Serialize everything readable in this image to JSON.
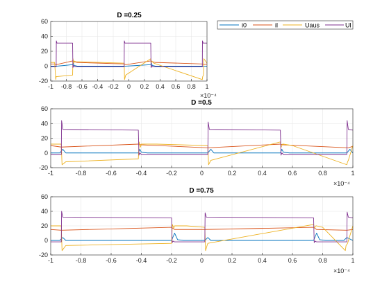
{
  "chart_data": [
    {
      "type": "line",
      "title": "D =0.25",
      "xlim": [
        -1,
        1
      ],
      "ylim": [
        -20,
        60
      ],
      "xticks": [
        "-1",
        "-0.8",
        "-0.6",
        "-0.4",
        "-0.2",
        "0",
        "0.2",
        "0.4",
        "0.6",
        "0.8",
        "1"
      ],
      "yticks": [
        "-20",
        "0",
        "20",
        "40",
        "60"
      ],
      "x_exponent": "×10⁻⁴",
      "grid": true,
      "legend_position": "outside-right",
      "series": [
        {
          "name": "i0",
          "color": "#0072BD",
          "x": [
            -1,
            -0.94,
            -0.932,
            -0.92,
            -0.72,
            -0.712,
            -0.7,
            -0.66,
            -0.06,
            -0.052,
            -0.04,
            0.28,
            0.288,
            0.3,
            0.34,
            0.94,
            0.948,
            0.96,
            1
          ],
          "y": [
            0,
            0,
            0,
            0,
            2,
            4,
            1,
            0,
            0,
            0,
            0,
            2,
            4,
            1,
            0,
            0,
            0,
            0,
            0
          ]
        },
        {
          "name": "il",
          "color": "#D95319",
          "x": [
            -1,
            -0.95,
            -0.93,
            -0.72,
            -0.7,
            -0.66,
            -0.06,
            -0.04,
            0.28,
            0.3,
            0.34,
            0.94,
            0.96,
            1
          ],
          "y": [
            3,
            3,
            2,
            7,
            6,
            5,
            3,
            2,
            7,
            6,
            5,
            3,
            2,
            3
          ]
        },
        {
          "name": "Uaus",
          "color": "#EDB120",
          "x": [
            -1,
            -0.95,
            -0.935,
            -0.93,
            -0.72,
            -0.715,
            -0.705,
            -0.7,
            -0.68,
            -0.06,
            -0.055,
            -0.045,
            -0.04,
            0.28,
            0.285,
            0.295,
            0.3,
            0.32,
            0.94,
            0.945,
            0.955,
            0.96,
            1
          ],
          "y": [
            5,
            5,
            -18,
            -14,
            -12,
            10,
            4,
            7,
            6,
            4,
            -18,
            -14,
            -12,
            10,
            4,
            7,
            6,
            4,
            -18,
            -14,
            -12,
            10,
            4
          ]
        },
        {
          "name": "Ul",
          "color": "#7E2F8E",
          "x": [
            -1,
            -0.93,
            -0.928,
            -0.92,
            -0.72,
            -0.716,
            -0.71,
            -0.7,
            -0.06,
            -0.058,
            -0.05,
            0.28,
            0.284,
            0.29,
            0.3,
            0.94,
            0.942,
            0.95,
            1
          ],
          "y": [
            -1,
            -1,
            34,
            31,
            31,
            -2,
            1,
            -1,
            -1,
            34,
            31,
            31,
            -2,
            1,
            -1,
            -1,
            34,
            31,
            31
          ]
        }
      ]
    },
    {
      "type": "line",
      "title": "D =0.5",
      "xlim": [
        -1,
        1
      ],
      "ylim": [
        -20,
        60
      ],
      "xticks": [
        "-1",
        "-0.8",
        "-0.6",
        "-0.4",
        "-0.2",
        "0",
        "0.2",
        "0.4",
        "0.6",
        "0.8",
        "1"
      ],
      "yticks": [
        "-20",
        "0",
        "20",
        "40",
        "60"
      ],
      "x_exponent": "×10⁻⁴",
      "grid": true,
      "series": [
        {
          "name": "i0",
          "color": "#0072BD",
          "x": [
            -1,
            -0.94,
            -0.92,
            -0.9,
            -0.42,
            -0.41,
            -0.4,
            -0.36,
            0.04,
            0.06,
            0.08,
            0.52,
            0.53,
            0.54,
            0.58,
            0.96,
            0.98,
            1
          ],
          "y": [
            0,
            0,
            5,
            0,
            0,
            5,
            1,
            0,
            0,
            5,
            0,
            0,
            5,
            1,
            0,
            0,
            5,
            0
          ]
        },
        {
          "name": "il",
          "color": "#D95319",
          "x": [
            -1,
            -0.93,
            -0.42,
            -0.4,
            0.04,
            0.52,
            0.54,
            0.97,
            1
          ],
          "y": [
            10,
            8,
            12,
            11,
            7,
            12,
            11,
            7,
            9
          ]
        },
        {
          "name": "Uaus",
          "color": "#EDB120",
          "x": [
            -1,
            -0.93,
            -0.925,
            -0.9,
            -0.42,
            -0.415,
            -0.405,
            -0.4,
            -0.3,
            0.04,
            0.045,
            0.055,
            0.06,
            0.52,
            0.525,
            0.535,
            0.54,
            0.6,
            0.96,
            0.965,
            0.97,
            1
          ],
          "y": [
            12,
            12,
            -16,
            -12,
            -8,
            15,
            8,
            12,
            12,
            10,
            -16,
            -12,
            -10,
            15,
            8,
            12,
            12,
            10,
            -16,
            -12,
            -10,
            10
          ]
        },
        {
          "name": "Ul",
          "color": "#7E2F8E",
          "x": [
            -1,
            -0.93,
            -0.928,
            -0.92,
            -0.42,
            -0.416,
            -0.41,
            -0.4,
            0.04,
            0.042,
            0.05,
            0.52,
            0.524,
            0.53,
            0.54,
            0.96,
            0.962,
            0.97,
            1
          ],
          "y": [
            -2,
            -2,
            44,
            32,
            31,
            -3,
            0,
            -2,
            -2,
            42,
            32,
            31,
            -3,
            0,
            -2,
            -2,
            44,
            32,
            31
          ]
        }
      ]
    },
    {
      "type": "line",
      "title": "D =0.75",
      "xlim": [
        -1,
        1
      ],
      "ylim": [
        -20,
        60
      ],
      "xticks": [
        "-1",
        "-0.8",
        "-0.6",
        "-0.4",
        "-0.2",
        "0",
        "0.2",
        "0.4",
        "0.6",
        "0.8",
        "1"
      ],
      "yticks": [
        "-20",
        "0",
        "20",
        "40",
        "60"
      ],
      "x_exponent": "×10⁻⁴",
      "grid": true,
      "series": [
        {
          "name": "i0",
          "color": "#0072BD",
          "x": [
            -1,
            -0.94,
            -0.92,
            -0.9,
            -0.2,
            -0.18,
            -0.16,
            -0.12,
            0.02,
            0.04,
            0.06,
            0.74,
            0.76,
            0.78,
            0.82,
            0.94,
            0.96,
            1
          ],
          "y": [
            0,
            0,
            4,
            0,
            0,
            10,
            1,
            0,
            0,
            4,
            0,
            0,
            10,
            1,
            0,
            0,
            4,
            0
          ]
        },
        {
          "name": "il",
          "color": "#D95319",
          "x": [
            -1,
            -0.93,
            -0.2,
            -0.18,
            0.02,
            0.74,
            0.76,
            0.96,
            1
          ],
          "y": [
            15,
            14,
            18,
            15,
            15,
            18,
            15,
            14,
            15
          ]
        },
        {
          "name": "Uaus",
          "color": "#EDB120",
          "x": [
            -1,
            -0.93,
            -0.925,
            -0.9,
            -0.2,
            -0.195,
            -0.185,
            -0.18,
            -0.1,
            0.02,
            0.025,
            0.035,
            0.04,
            0.74,
            0.745,
            0.755,
            0.76,
            0.8,
            0.95,
            0.955,
            0.965,
            1
          ],
          "y": [
            20,
            20,
            -14,
            -7,
            -4,
            22,
            17,
            20,
            20,
            18,
            -14,
            -7,
            -4,
            22,
            17,
            20,
            20,
            18,
            -14,
            -7,
            -4,
            20
          ]
        },
        {
          "name": "Ul",
          "color": "#7E2F8E",
          "x": [
            -1,
            -0.93,
            -0.928,
            -0.92,
            -0.2,
            -0.196,
            -0.19,
            -0.18,
            0.02,
            0.022,
            0.03,
            0.74,
            0.744,
            0.75,
            0.76,
            0.96,
            0.962,
            0.97,
            1
          ],
          "y": [
            -2,
            -2,
            40,
            32,
            31,
            -3,
            -1,
            -2,
            -2,
            38,
            32,
            31,
            -3,
            -1,
            -2,
            -2,
            39,
            32,
            31
          ]
        }
      ]
    }
  ]
}
